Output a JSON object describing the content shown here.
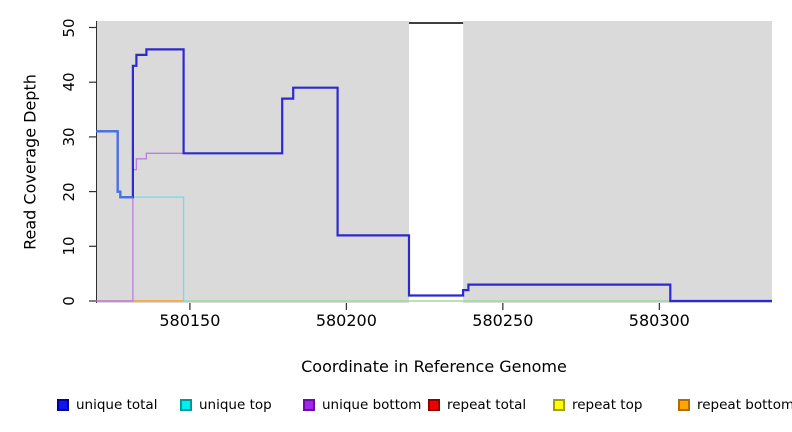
{
  "chart_data": {
    "type": "line",
    "title": "",
    "xlabel": "Coordinate in Reference Genome",
    "ylabel": "Read Coverage Depth",
    "xlim": [
      580120,
      580336
    ],
    "ylim": [
      0,
      51.5
    ],
    "x_ticks": [
      580150,
      580200,
      580250,
      580300
    ],
    "y_ticks": [
      0,
      10,
      20,
      30,
      40,
      50
    ],
    "plot_bg": "#DADADA",
    "axis_color": "#2F2F2F",
    "grid": false,
    "legend_position": "bottom",
    "masked_region": {
      "x_from": 580220,
      "x_to": 580237.3,
      "fill": "#FFFFFF",
      "cap_value": 51,
      "cap_color": "#3F3F3F"
    },
    "baseline_segments": [
      {
        "name": "repeat-total-baseline",
        "color": "#CC6FB4",
        "y": 0,
        "x_from": 580120,
        "x_to": 580131.7
      },
      {
        "name": "repeat-bottom-baseline",
        "color": "#FFA022",
        "y": 0,
        "x_from": 580131.7,
        "x_to": 580148
      },
      {
        "name": "zero-baseline-green",
        "color": "#9ED89B",
        "y": 0,
        "x_from": 580148,
        "x_to": 580336
      }
    ],
    "series": [
      {
        "name": "unique bottom",
        "color": "#BD7CDE",
        "width": 1.3,
        "steps": [
          [
            580120,
            0
          ],
          [
            580131.8,
            24
          ],
          [
            580132.9,
            26
          ],
          [
            580136.1,
            27
          ],
          [
            580148,
            27
          ],
          [
            580179.5,
            37
          ],
          [
            580183,
            39
          ],
          [
            580197.2,
            12
          ],
          [
            580220,
            1
          ],
          [
            580237.3,
            2
          ],
          [
            580239,
            3
          ],
          [
            580303.5,
            0
          ],
          [
            580336,
            0
          ]
        ]
      },
      {
        "name": "unique top",
        "color": "#66E2E8",
        "width": 1.3,
        "steps": [
          [
            580120,
            31
          ],
          [
            580126.9,
            20
          ],
          [
            580127.8,
            19
          ],
          [
            580148,
            0
          ],
          [
            580149.5,
            0
          ]
        ]
      },
      {
        "name": "unique total",
        "color": "#2E28D0",
        "width": 2.2,
        "steps": [
          [
            580120,
            31
          ],
          [
            580126.9,
            20
          ],
          [
            580127.8,
            19
          ],
          [
            580131.8,
            43
          ],
          [
            580132.9,
            45
          ],
          [
            580136.1,
            46
          ],
          [
            580148,
            27
          ],
          [
            580179.5,
            37
          ],
          [
            580183,
            39
          ],
          [
            580197.2,
            12
          ],
          [
            580220,
            1
          ],
          [
            580237.3,
            2
          ],
          [
            580239,
            3
          ],
          [
            580303.5,
            0
          ],
          [
            580336,
            0
          ]
        ]
      },
      {
        "name": "unique-total-overlap-tint",
        "color": "#4470E6",
        "width": 2.2,
        "steps": [
          [
            580120,
            31
          ],
          [
            580126.9,
            20
          ],
          [
            580127.8,
            19
          ],
          [
            580131.8,
            19
          ]
        ]
      }
    ],
    "legend": [
      {
        "label": "unique total",
        "fill": "#1414F0",
        "border": "#0000A0"
      },
      {
        "label": "unique top",
        "fill": "#00F0F0",
        "border": "#009898"
      },
      {
        "label": "unique bottom",
        "fill": "#A228E8",
        "border": "#6A0DAD"
      },
      {
        "label": "repeat total",
        "fill": "#F00000",
        "border": "#900000"
      },
      {
        "label": "repeat top",
        "fill": "#FFFF00",
        "border": "#A0A000"
      },
      {
        "label": "repeat bottom",
        "fill": "#FFA500",
        "border": "#B36B00"
      }
    ]
  }
}
